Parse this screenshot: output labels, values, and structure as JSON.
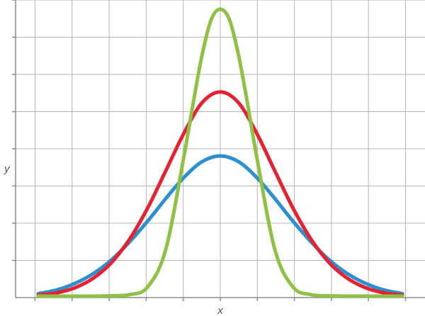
{
  "chart_data": {
    "type": "line",
    "xlabel": "x",
    "ylabel": "y",
    "xlim": [
      -5,
      5
    ],
    "ylim": [
      0,
      8
    ],
    "grid": true,
    "background": "#ffffff",
    "grid_color": "#b4b4b4",
    "axis_color": "#8c8c8c",
    "series": [
      {
        "color": "#2b8fd0",
        "x": [
          -5,
          -4.5,
          -4,
          -3.5,
          -3,
          -2.5,
          -2,
          -1.5,
          -1,
          -0.5,
          0,
          0.5,
          1,
          1.5,
          2,
          2.5,
          3,
          3.5,
          4,
          4.5,
          5
        ],
        "y": [
          0.11,
          0.21,
          0.39,
          0.66,
          1.04,
          1.54,
          2.12,
          2.75,
          3.34,
          3.78,
          3.94,
          3.78,
          3.34,
          2.75,
          2.12,
          1.54,
          1.04,
          0.66,
          0.39,
          0.21,
          0.11
        ]
      },
      {
        "color": "#e62131",
        "x": [
          -5,
          -4.5,
          -4,
          -3.5,
          -3,
          -2.5,
          -2,
          -1.5,
          -1,
          -0.5,
          0,
          0.5,
          1,
          1.5,
          2,
          2.5,
          3,
          3.5,
          4,
          4.5,
          5
        ],
        "y": [
          0.07,
          0.13,
          0.27,
          0.53,
          0.96,
          1.61,
          2.48,
          3.52,
          4.57,
          5.42,
          5.72,
          5.42,
          4.57,
          3.52,
          2.48,
          1.61,
          0.96,
          0.53,
          0.27,
          0.13,
          0.07
        ]
      },
      {
        "color": "#8fc144",
        "x": [
          -5,
          -4.5,
          -4,
          -3.5,
          -3,
          -2.5,
          -2,
          -1.5,
          -1,
          -0.75,
          -0.5,
          -0.25,
          0,
          0.25,
          0.5,
          0.75,
          1,
          1.5,
          2,
          2.5,
          3,
          3.5,
          4,
          4.5,
          5
        ],
        "y": [
          0.04,
          0.04,
          0.04,
          0.04,
          0.05,
          0.08,
          0.29,
          1.33,
          3.92,
          5.38,
          6.75,
          7.73,
          8.02,
          7.73,
          6.75,
          5.38,
          3.92,
          1.33,
          0.29,
          0.08,
          0.05,
          0.04,
          0.04,
          0.04,
          0.04
        ]
      }
    ]
  }
}
